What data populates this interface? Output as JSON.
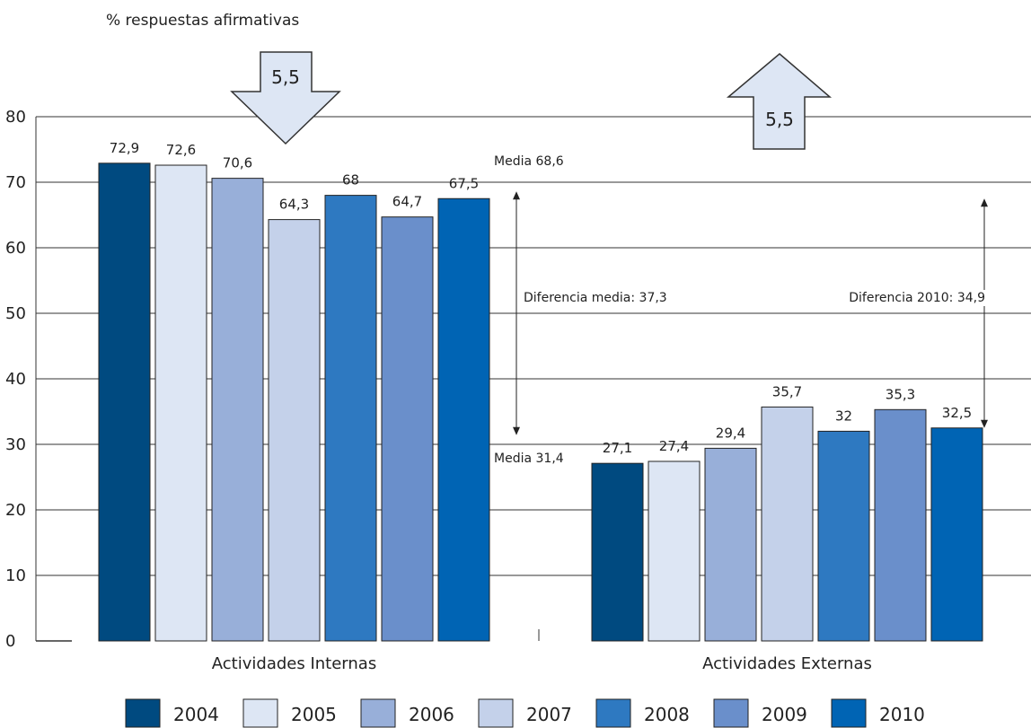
{
  "chart_data": {
    "type": "bar",
    "title": "% respuestas afirmativas",
    "ylim": [
      0,
      80
    ],
    "yticks": [
      "0",
      "10",
      "20",
      "30",
      "40",
      "50",
      "60",
      "70",
      "80"
    ],
    "grid": true,
    "legend_position": "bottom",
    "categories": [
      "Actividades Internas",
      "Actividades Externas"
    ],
    "series": [
      {
        "name": "2004",
        "color": "#004a80",
        "values": [
          72.9,
          27.1
        ],
        "labels": [
          "72,9",
          "27,1"
        ]
      },
      {
        "name": "2005",
        "color": "#dde6f4",
        "values": [
          72.6,
          27.4
        ],
        "labels": [
          "72,6",
          "27,4"
        ]
      },
      {
        "name": "2006",
        "color": "#98afd9",
        "values": [
          70.6,
          29.4
        ],
        "labels": [
          "70,6",
          "29,4"
        ]
      },
      {
        "name": "2007",
        "color": "#c4d1ea",
        "values": [
          64.3,
          35.7
        ],
        "labels": [
          "64,3",
          "35,7"
        ]
      },
      {
        "name": "2008",
        "color": "#2e79c1",
        "values": [
          68,
          32
        ],
        "labels": [
          "68",
          "32"
        ]
      },
      {
        "name": "2009",
        "color": "#6a8fcb",
        "values": [
          64.7,
          35.3
        ],
        "labels": [
          "64,7",
          "35,3"
        ]
      },
      {
        "name": "2010",
        "color": "#0064b4",
        "values": [
          67.5,
          32.5
        ],
        "labels": [
          "67,5",
          "32,5"
        ]
      }
    ],
    "reference_lines": [
      {
        "label": "Media 68,6",
        "value": 68.6
      },
      {
        "label": "Media 31,4",
        "value": 31.4
      }
    ],
    "annotations": [
      {
        "label": "Diferencia media: 37,3",
        "from": 31.4,
        "to": 68.6
      },
      {
        "label": "Diferencia 2010: 34,9",
        "from": 32.5,
        "to": 67.5
      }
    ],
    "arrows": [
      {
        "label": "5,5",
        "direction": "down"
      },
      {
        "label": "5,5",
        "direction": "up"
      }
    ]
  }
}
